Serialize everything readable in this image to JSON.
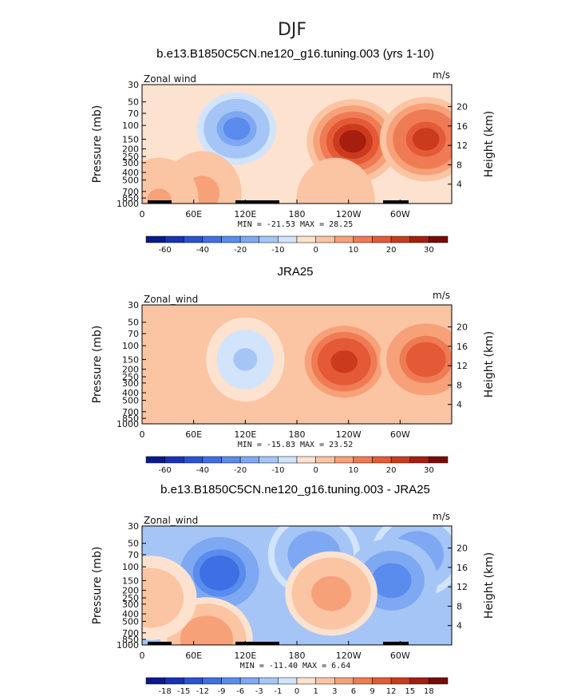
{
  "figure": {
    "title": "DJF"
  },
  "chart_data": [
    {
      "type": "heatmap",
      "title": "b.e13.B1850C5CN.ne120_g16.tuning.003 (yrs 1-10)",
      "variable_label": "Zonal wind",
      "units": "m/s",
      "ylabel": "Pressure (mb)",
      "y2label": "Height (km)",
      "x_ticks": [
        "0",
        "60E",
        "120E",
        "180",
        "120W",
        "60W"
      ],
      "y_ticks": [
        "30",
        "50",
        "70",
        "100",
        "150",
        "200",
        "250",
        "300",
        "400",
        "500",
        "700",
        "850",
        "1000"
      ],
      "y2_ticks": [
        "20",
        "16",
        "12",
        "8",
        "4"
      ],
      "xlim": [
        0,
        360
      ],
      "ylim": [
        1000,
        30
      ],
      "yscale": "log",
      "min_max_text": "MIN = -21.53   MAX =  28.25",
      "min": -21.53,
      "max": 28.25,
      "colorbar_labels": [
        "-60",
        "-40",
        "-20",
        "-10",
        "0",
        "10",
        "20",
        "30"
      ],
      "levels": [
        -70,
        -60,
        -50,
        -40,
        -30,
        -20,
        -15,
        -10,
        -5,
        0,
        5,
        10,
        15,
        20,
        25,
        30,
        35
      ],
      "features": [
        {
          "lon": 245,
          "p": 160,
          "value": 28
        },
        {
          "lon": 330,
          "p": 150,
          "value": 20
        },
        {
          "lon": 110,
          "p": 110,
          "value": -21
        },
        {
          "lon": 70,
          "p": 740,
          "value": 6
        },
        {
          "lon": 20,
          "p": 900,
          "value": 5
        },
        {
          "lon": 225,
          "p": 900,
          "value": 3
        }
      ]
    },
    {
      "type": "heatmap",
      "title": "JRA25",
      "variable_label": "Zonal_wind",
      "units": "m/s",
      "ylabel": "Pressure (mb)",
      "y2label": "Height (km)",
      "x_ticks": [
        "0",
        "60E",
        "120E",
        "180",
        "120W",
        "60W"
      ],
      "y_ticks": [
        "30",
        "50",
        "70",
        "100",
        "150",
        "200",
        "250",
        "300",
        "400",
        "500",
        "700",
        "850",
        "1000"
      ],
      "y2_ticks": [
        "20",
        "16",
        "12",
        "8",
        "4"
      ],
      "xlim": [
        0,
        360
      ],
      "ylim": [
        1000,
        30
      ],
      "yscale": "log",
      "min_max_text": "MIN = -15.83   MAX =  23.52",
      "min": -15.83,
      "max": 23.52,
      "colorbar_labels": [
        "-60",
        "-40",
        "-20",
        "-10",
        "0",
        "10",
        "20",
        "30"
      ],
      "levels": [
        -70,
        -60,
        -50,
        -40,
        -30,
        -20,
        -15,
        -10,
        -5,
        0,
        5,
        10,
        15,
        20,
        25,
        30,
        35
      ],
      "features": [
        {
          "lon": 235,
          "p": 160,
          "value": 23
        },
        {
          "lon": 330,
          "p": 150,
          "value": 18
        },
        {
          "lon": 120,
          "p": 150,
          "value": -12
        },
        {
          "lon": 20,
          "p": 900,
          "value": 3
        }
      ]
    },
    {
      "type": "heatmap",
      "title": "b.e13.B1850C5CN.ne120_g16.tuning.003 - JRA25",
      "variable_label": "Zonal_wind",
      "units": "m/s",
      "ylabel": "Pressure (mb)",
      "y2label": "Height (km)",
      "x_ticks": [
        "0",
        "60E",
        "120E",
        "180",
        "120W",
        "60W"
      ],
      "y_ticks": [
        "30",
        "50",
        "70",
        "100",
        "150",
        "200",
        "250",
        "300",
        "400",
        "500",
        "700",
        "850",
        "1000"
      ],
      "y2_ticks": [
        "20",
        "16",
        "12",
        "8",
        "4"
      ],
      "xlim": [
        0,
        360
      ],
      "ylim": [
        1000,
        30
      ],
      "yscale": "log",
      "min_max_text": "MIN = -11.40   MAX =    6.64",
      "min": -11.4,
      "max": 6.64,
      "colorbar_labels": [
        "-18",
        "-15",
        "-12",
        "-9",
        "-6",
        "-3",
        "-1",
        "0",
        "1",
        "3",
        "6",
        "9",
        "12",
        "15",
        "18"
      ],
      "levels": [
        -21,
        -18,
        -15,
        -12,
        -9,
        -6,
        -3,
        -1,
        0,
        1,
        3,
        6,
        9,
        12,
        15,
        18,
        21
      ],
      "features": [
        {
          "lon": 90,
          "p": 120,
          "value": -11
        },
        {
          "lon": 200,
          "p": 70,
          "value": -6
        },
        {
          "lon": 320,
          "p": 70,
          "value": -5
        },
        {
          "lon": 290,
          "p": 150,
          "value": -9
        },
        {
          "lon": 220,
          "p": 220,
          "value": 4
        },
        {
          "lon": 75,
          "p": 850,
          "value": 5
        },
        {
          "lon": 10,
          "p": 250,
          "value": 2
        }
      ]
    }
  ],
  "colors": {
    "diverging_palette": [
      "#0a1a8c",
      "#1731b8",
      "#2a52d6",
      "#3f6fe5",
      "#5a8ced",
      "#7ea8f2",
      "#a5c5f7",
      "#d2e4fb",
      "#fde2cf",
      "#fbc4a3",
      "#f7a179",
      "#ef7b54",
      "#e55a36",
      "#cc3a1e",
      "#a51e10",
      "#7a0a08"
    ],
    "land": "#000000"
  }
}
